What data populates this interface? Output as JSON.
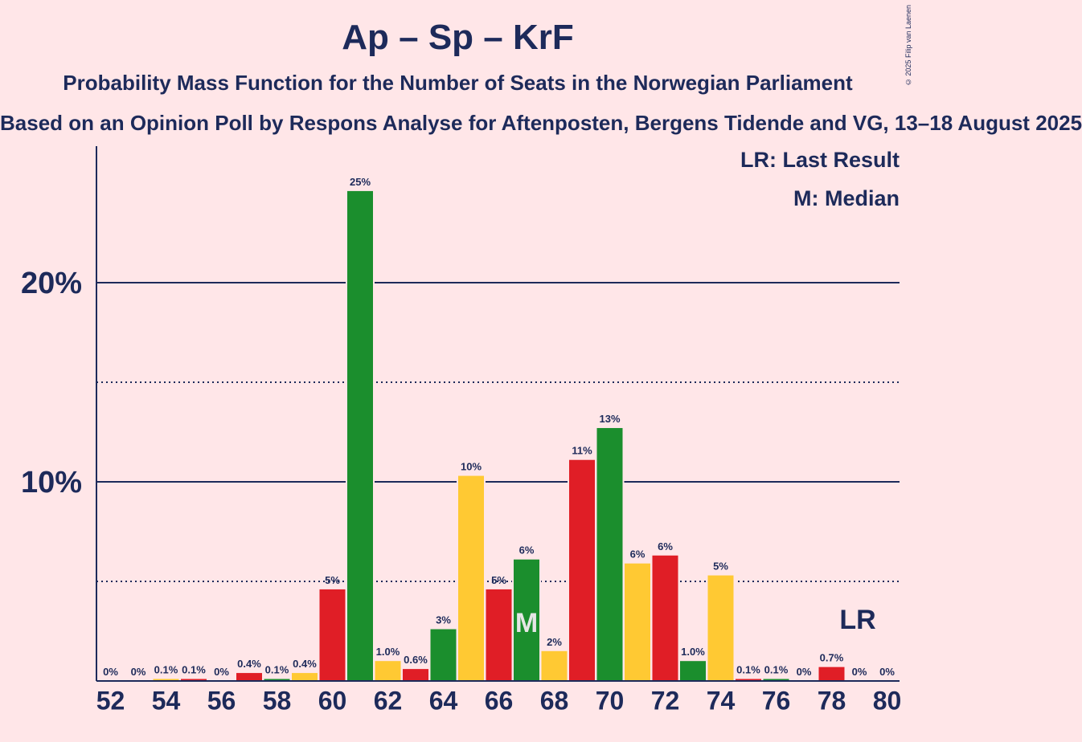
{
  "header": {
    "title": "Ap – Sp – KrF",
    "subtitle": "Probability Mass Function for the Number of Seats in the Norwegian Parliament",
    "source": "Based on an Opinion Poll by Respons Analyse for Aftenposten, Bergens Tidende and VG, 13–18 August 2025",
    "copyright": "© 2025 Filip van Laenen"
  },
  "legend": {
    "last_result": "LR: Last Result",
    "median": "M: Median"
  },
  "colors": {
    "background": "#FFE6E8",
    "text": "#1D2A5A",
    "red": "#E01E26",
    "green": "#1B8E2D",
    "yellow": "#FFC933"
  },
  "chart_data": {
    "type": "bar",
    "x": [
      52,
      53,
      54,
      55,
      56,
      57,
      58,
      59,
      60,
      61,
      62,
      63,
      64,
      65,
      66,
      67,
      68,
      69,
      70,
      71,
      72,
      73,
      74,
      75,
      76,
      77,
      78,
      79,
      80
    ],
    "values": [
      0,
      0,
      0.1,
      0.1,
      0,
      0.4,
      0.1,
      0.4,
      4.6,
      24.6,
      1.0,
      0.6,
      2.6,
      10.3,
      4.6,
      6.1,
      1.5,
      11.1,
      12.7,
      5.9,
      6.3,
      1.0,
      5.3,
      0.1,
      0.1,
      0,
      0.7,
      0,
      0
    ],
    "value_labels": [
      "0%",
      "0%",
      "0.1%",
      "0.1%",
      "0%",
      "0.4%",
      "0.1%",
      "0.4%",
      "5%",
      "25%",
      "1.0%",
      "0.6%",
      "3%",
      "10%",
      "5%",
      "6%",
      "2%",
      "11%",
      "13%",
      "6%",
      "6%",
      "1.0%",
      "5%",
      "0.1%",
      "0.1%",
      "0%",
      "0.7%",
      "0%",
      "0%"
    ],
    "bar_colors": [
      "red",
      "green",
      "yellow",
      "red",
      "green",
      "red",
      "green",
      "yellow",
      "red",
      "green",
      "yellow",
      "red",
      "green",
      "yellow",
      "red",
      "green",
      "yellow",
      "red",
      "green",
      "yellow",
      "red",
      "green",
      "yellow",
      "red",
      "green",
      "yellow",
      "red",
      "green",
      "yellow"
    ],
    "x_tick_labels": [
      "52",
      "54",
      "56",
      "58",
      "60",
      "62",
      "64",
      "66",
      "68",
      "70",
      "72",
      "74",
      "76",
      "78",
      "80"
    ],
    "y_tick_labels": [
      {
        "value": 10,
        "label": "10%"
      },
      {
        "value": 20,
        "label": "20%"
      }
    ],
    "solid_gridlines": [
      10,
      20
    ],
    "dotted_gridlines": [
      5,
      15
    ],
    "ylim": [
      0,
      27
    ],
    "median_seat": 67,
    "median_label": "M",
    "last_result_seat": 79,
    "last_result_label": "LR"
  }
}
